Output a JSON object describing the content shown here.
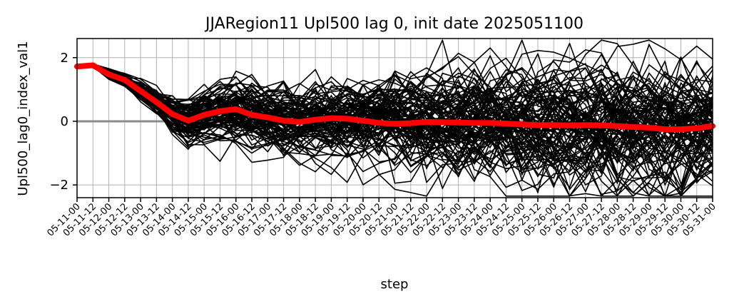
{
  "chart_data": {
    "type": "line",
    "title": "JJARegion11 Upl500 lag 0, init date 2025051100",
    "xlabel": "step",
    "ylabel": "Upl500_lag0_index_val1",
    "ylim": [
      -2.4,
      2.6
    ],
    "yticks": [
      -2,
      0,
      2
    ],
    "grid": true,
    "zero_line": true,
    "x": [
      "05-11-00",
      "05-11-12",
      "05-12-00",
      "05-12-12",
      "05-13-00",
      "05-13-12",
      "05-14-00",
      "05-14-12",
      "05-15-00",
      "05-15-12",
      "05-16-00",
      "05-16-12",
      "05-17-00",
      "05-17-12",
      "05-18-00",
      "05-18-12",
      "05-19-00",
      "05-19-12",
      "05-20-00",
      "05-20-12",
      "05-21-00",
      "05-21-12",
      "05-22-00",
      "05-22-12",
      "05-23-00",
      "05-23-12",
      "05-24-00",
      "05-24-12",
      "05-25-00",
      "05-25-12",
      "05-26-00",
      "05-26-12",
      "05-27-00",
      "05-27-12",
      "05-28-00",
      "05-28-12",
      "05-29-00",
      "05-29-12",
      "05-30-00",
      "05-30-12",
      "05-31-00"
    ],
    "ensemble_members": 100,
    "ensemble_color": "#000000",
    "series": [
      {
        "color": "#ff0000",
        "values": [
          1.72,
          1.76,
          1.47,
          1.3,
          0.95,
          0.6,
          0.22,
          0.02,
          0.2,
          0.32,
          0.38,
          0.2,
          0.12,
          0.02,
          -0.02,
          0.05,
          0.1,
          0.08,
          0.02,
          -0.05,
          -0.08,
          -0.06,
          -0.02,
          -0.03,
          -0.04,
          -0.05,
          -0.05,
          -0.07,
          -0.1,
          -0.12,
          -0.12,
          -0.13,
          -0.12,
          -0.13,
          -0.15,
          -0.18,
          -0.2,
          -0.25,
          -0.25,
          -0.22,
          -0.15
        ]
      }
    ]
  }
}
